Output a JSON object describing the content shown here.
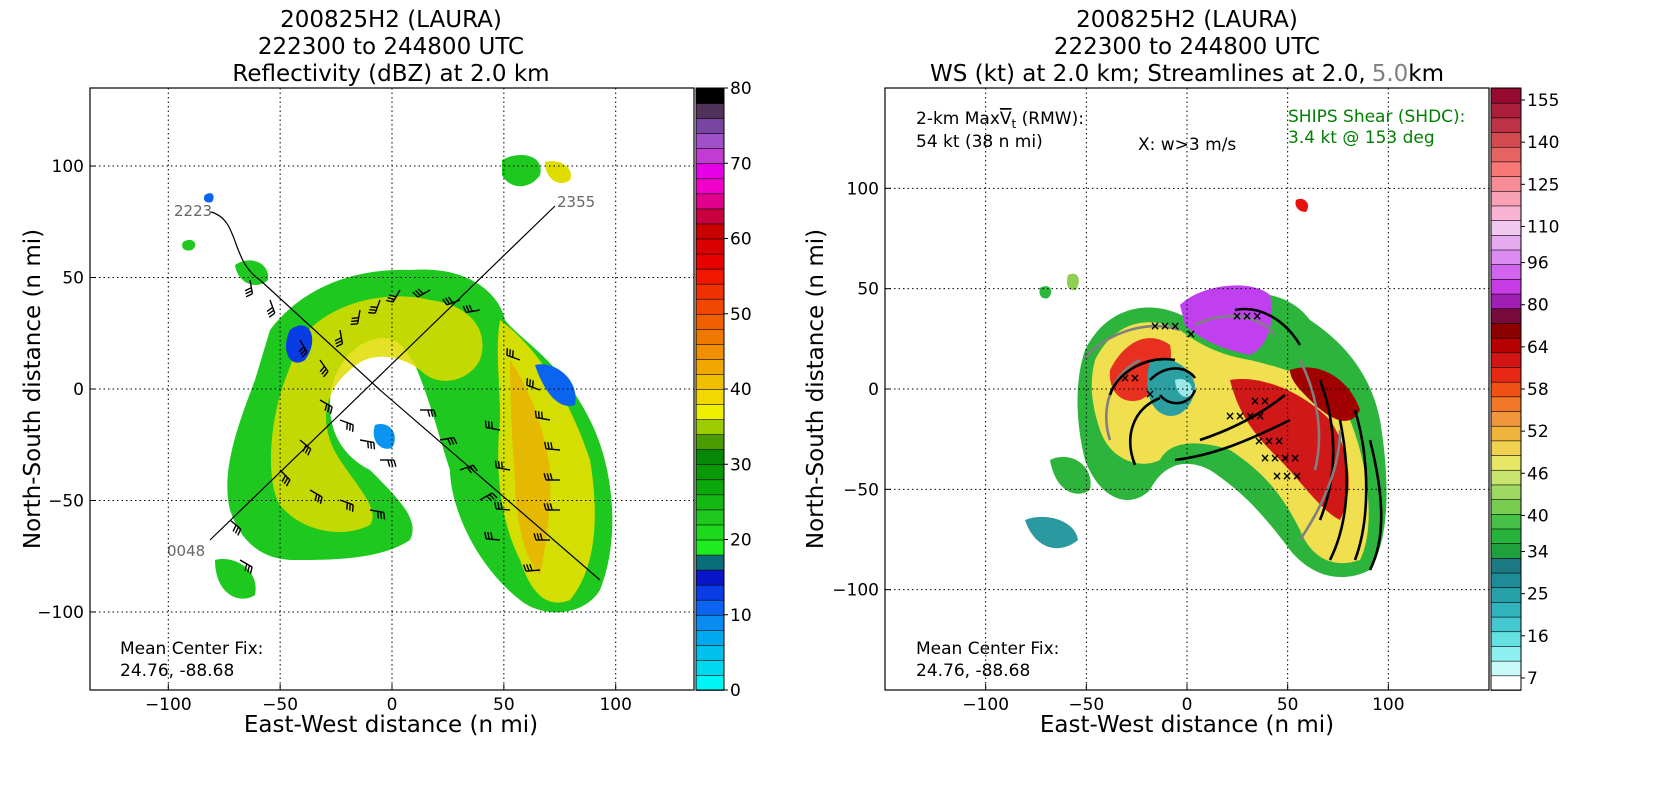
{
  "panels": [
    {
      "title_lines": [
        "200825H2 (LAURA)",
        "222300 to 244800 UTC",
        "Reflectivity (dBZ) at 2.0 km"
      ],
      "xlabel": "East-West distance (n mi)",
      "ylabel": "North-South distance (n mi)",
      "center_fix_label": "Mean Center Fix:",
      "center_fix_value": "24.76, -88.68",
      "flight_labels": [
        "2223",
        "2355",
        "0048"
      ],
      "colorbar_ticks": [
        "0",
        "10",
        "20",
        "30",
        "40",
        "50",
        "60",
        "70",
        "80"
      ]
    },
    {
      "title_lines": [
        "200825H2 (LAURA)",
        "222300 to 244800 UTC"
      ],
      "title_line3_a": "WS (kt) at 2.0 km; Streamlines at 2.0,",
      "title_line3_b": "5.0",
      "title_line3_c": "km",
      "xlabel": "East-West distance (n mi)",
      "ylabel": "North-South distance (n mi)",
      "maxvt_label_a": "2-km Max",
      "maxvt_label_v": "V",
      "maxvt_label_sub": "t",
      "maxvt_label_b": " (RMW):",
      "maxvt_value": "54 kt (38 n mi)",
      "updraft_label": "X: w>3 m/s",
      "shear_label": "SHIPS Shear (SHDC):",
      "shear_value": "3.4 kt @ 153 deg",
      "center_fix_label": "Mean Center Fix:",
      "center_fix_value": "24.76, -88.68",
      "colorbar_ticks": [
        "7",
        "16",
        "25",
        "34",
        "40",
        "46",
        "52",
        "58",
        "64",
        "80",
        "96",
        "110",
        "125",
        "140",
        "155"
      ]
    }
  ],
  "chart_data": [
    {
      "type": "heatmap",
      "title": "200825H2 (LAURA) 222300 to 244800 UTC Reflectivity (dBZ) at 2.0 km",
      "xlabel": "East-West distance (n mi)",
      "ylabel": "North-South distance (n mi)",
      "xlim": [
        -135,
        135
      ],
      "ylim": [
        -135,
        135
      ],
      "xticks": [
        -100,
        -50,
        0,
        50,
        100
      ],
      "yticks": [
        -100,
        -50,
        0,
        50,
        100
      ],
      "grid": true,
      "colorbar": {
        "label_values": [
          0,
          10,
          20,
          30,
          40,
          50,
          60,
          70,
          80
        ],
        "range": [
          0,
          80
        ]
      },
      "flight_track": [
        {
          "label": "2223",
          "x": -80,
          "y": 79
        },
        {
          "label": "2355",
          "x": 74,
          "y": 82
        },
        {
          "label": "0048",
          "x": -76,
          "y": -67
        }
      ],
      "annotations": [
        "Mean Center Fix:",
        "24.76, -88.68"
      ]
    },
    {
      "type": "heatmap",
      "title": "200825H2 (LAURA) 222300 to 244800 UTC WS (kt) at 2.0 km; Streamlines at 2.0, 5.0 km",
      "xlabel": "East-West distance (n mi)",
      "ylabel": "North-South distance (n mi)",
      "xlim": [
        -150,
        150
      ],
      "ylim": [
        -150,
        150
      ],
      "xticks": [
        -100,
        -50,
        0,
        50,
        100
      ],
      "yticks": [
        -100,
        -50,
        0,
        50,
        100
      ],
      "grid": true,
      "colorbar": {
        "label_values": [
          7,
          16,
          25,
          34,
          40,
          46,
          52,
          58,
          64,
          80,
          96,
          110,
          125,
          140,
          155
        ],
        "range": [
          7,
          160
        ]
      },
      "max_vt_kt": 54,
      "rmw_nmi": 38,
      "shear_kt": 3.4,
      "shear_deg": 153,
      "annotations": [
        "2-km MaxVt (RMW):",
        "54 kt (38 n mi)",
        "X: w>3 m/s",
        "SHIPS Shear (SHDC):",
        "3.4 kt @ 153 deg",
        "Mean Center Fix:",
        "24.76, -88.68"
      ]
    }
  ]
}
